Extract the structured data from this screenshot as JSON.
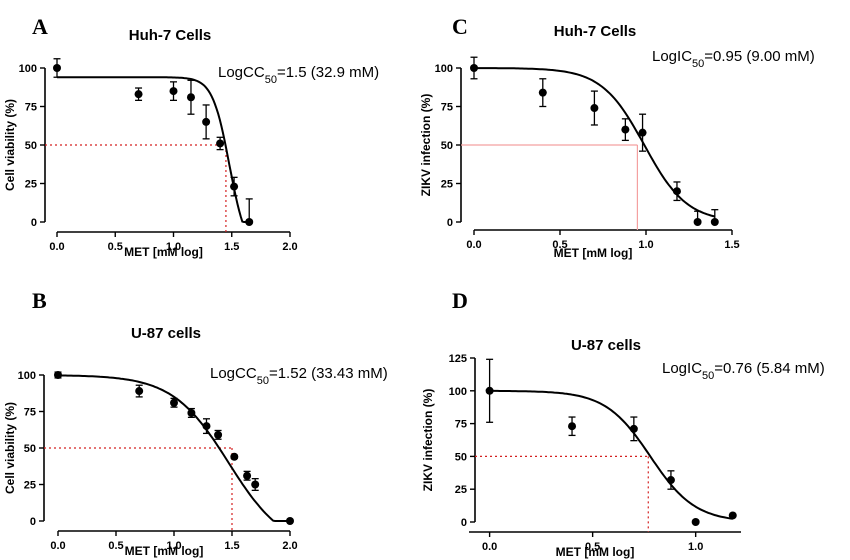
{
  "chart_data": [
    {
      "panel": "A",
      "type": "scatter",
      "title": "Huh-7 Cells",
      "xlabel": "MET [mM log]",
      "ylabel": "Cell viability (%)",
      "annotation": {
        "prefix": "LogCC",
        "sub": "50",
        "suffix": "=1.5 (32.9 mM)"
      },
      "xlim": [
        0,
        2.0
      ],
      "ylim": [
        0,
        100
      ],
      "xticks": [
        "0.0",
        "0.5",
        "1.0",
        "1.5",
        "2.0"
      ],
      "yticks": [
        "0",
        "25",
        "50",
        "75",
        "100"
      ],
      "points": [
        {
          "x": 0.0,
          "y": 100,
          "err": 6
        },
        {
          "x": 0.7,
          "y": 83,
          "err": 4
        },
        {
          "x": 1.0,
          "y": 85,
          "err": 6
        },
        {
          "x": 1.15,
          "y": 81,
          "err": 11
        },
        {
          "x": 1.28,
          "y": 65,
          "err": 11
        },
        {
          "x": 1.4,
          "y": 51,
          "err": 4
        },
        {
          "x": 1.52,
          "y": 23,
          "err": 6
        },
        {
          "x": 1.65,
          "y": 0,
          "err": 15
        }
      ],
      "fit": {
        "top": 94,
        "bottom": -20,
        "ec50": 1.48,
        "hill": 6,
        "xmin": 0,
        "xmax": 1.66
      },
      "ref_x": 1.45,
      "ref_y": 50,
      "ref_style": "dotted",
      "ref_color": "#d42020"
    },
    {
      "panel": "B",
      "type": "scatter",
      "title": "U-87 cells",
      "xlabel": "MET [mM log]",
      "ylabel": "Cell viability (%)",
      "annotation": {
        "prefix": "LogCC",
        "sub": "50",
        "suffix": "=1.52 (33.43 mM)"
      },
      "xlim": [
        0,
        2.0
      ],
      "ylim": [
        0,
        100
      ],
      "xticks": [
        "0.0",
        "0.5",
        "1.0",
        "1.5",
        "2.0"
      ],
      "yticks": [
        "0",
        "25",
        "50",
        "75",
        "100"
      ],
      "points": [
        {
          "x": 0.0,
          "y": 100,
          "err": 2
        },
        {
          "x": 0.7,
          "y": 89,
          "err": 4
        },
        {
          "x": 1.0,
          "y": 81,
          "err": 3
        },
        {
          "x": 1.15,
          "y": 74,
          "err": 3
        },
        {
          "x": 1.28,
          "y": 65,
          "err": 5
        },
        {
          "x": 1.38,
          "y": 59,
          "err": 3
        },
        {
          "x": 1.52,
          "y": 44,
          "err": 1
        },
        {
          "x": 1.63,
          "y": 31,
          "err": 3
        },
        {
          "x": 1.7,
          "y": 25,
          "err": 4
        },
        {
          "x": 2.0,
          "y": 0,
          "err": 0
        }
      ],
      "fit": {
        "top": 100,
        "bottom": -20,
        "ec50": 1.47,
        "hill": 1.8,
        "xmin": 0,
        "xmax": 1.97
      },
      "ref_x": 1.5,
      "ref_y": 50,
      "ref_style": "dotted",
      "ref_color": "#d42020"
    },
    {
      "panel": "C",
      "type": "scatter",
      "title": "Huh-7 Cells",
      "xlabel": "MET [mM log]",
      "ylabel": "ZIKV infection (%)",
      "annotation": {
        "prefix": "LogIC",
        "sub": "50",
        "suffix": "=0.95 (9.00 mM)"
      },
      "xlim": [
        0,
        1.5
      ],
      "ylim": [
        0,
        100
      ],
      "xticks": [
        "0.0",
        "0.5",
        "1.0",
        "1.5"
      ],
      "yticks": [
        "0",
        "25",
        "50",
        "75",
        "100"
      ],
      "points": [
        {
          "x": 0.0,
          "y": 100,
          "err": 7
        },
        {
          "x": 0.4,
          "y": 84,
          "err": 9
        },
        {
          "x": 0.7,
          "y": 74,
          "err": 11
        },
        {
          "x": 0.88,
          "y": 60,
          "err": 7
        },
        {
          "x": 0.98,
          "y": 58,
          "err": 12
        },
        {
          "x": 1.18,
          "y": 20,
          "err": 6
        },
        {
          "x": 1.3,
          "y": 0,
          "err": 7
        },
        {
          "x": 1.4,
          "y": 0,
          "err": 8
        }
      ],
      "fit": {
        "top": 100,
        "bottom": 0,
        "ec50": 0.99,
        "hill": 3.5,
        "xmin": 0,
        "xmax": 1.4
      },
      "ref_x": 0.95,
      "ref_y": 50,
      "ref_style": "solid",
      "ref_color": "#f4a0a0"
    },
    {
      "panel": "D",
      "type": "scatter",
      "title": "U-87 cells",
      "xlabel": "MET [mM log]",
      "ylabel": "ZIKV infection (%)",
      "annotation": {
        "prefix": "LogIC",
        "sub": "50",
        "suffix": "=0.76 (5.84 mM)"
      },
      "xlim": [
        -0.1,
        1.22
      ],
      "ylim": [
        0,
        125
      ],
      "xticks": [
        "0.0",
        "0.5",
        "1.0"
      ],
      "yticks": [
        "0",
        "25",
        "50",
        "75",
        "100",
        "125"
      ],
      "points": [
        {
          "x": 0.0,
          "y": 100,
          "err": 24
        },
        {
          "x": 0.4,
          "y": 73,
          "err": 7
        },
        {
          "x": 0.7,
          "y": 71,
          "err": 9
        },
        {
          "x": 0.88,
          "y": 32,
          "err": 7
        },
        {
          "x": 1.0,
          "y": 0,
          "err": 0
        },
        {
          "x": 1.18,
          "y": 5,
          "err": 0
        }
      ],
      "fit": {
        "top": 100,
        "bottom": 0,
        "ec50": 0.78,
        "hill": 4,
        "xmin": 0,
        "xmax": 1.18
      },
      "ref_x": 0.77,
      "ref_y": 50,
      "ref_style": "dotted",
      "ref_color": "#d42020"
    }
  ]
}
